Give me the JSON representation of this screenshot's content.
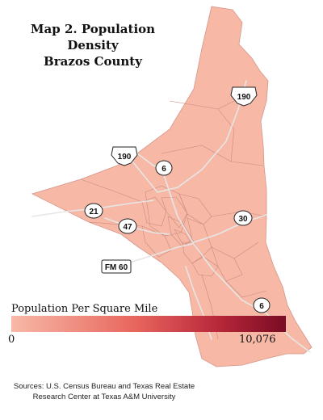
{
  "title": {
    "line1": "Map 2. Population Density",
    "line2": "Brazos County"
  },
  "legend": {
    "title": "Population Per Square Mile",
    "min": "0",
    "max": "10,076",
    "colors": [
      "#f7b9a6",
      "#e8665e",
      "#b8283a",
      "#7a0c24"
    ]
  },
  "base_fill_color": "#f7b9a6",
  "highways": [
    {
      "label": "190",
      "type": "us-highway-shield"
    },
    {
      "label": "190",
      "type": "us-highway-shield"
    },
    {
      "label": "6",
      "type": "state-highway-oval"
    },
    {
      "label": "21",
      "type": "state-highway-oval"
    },
    {
      "label": "47",
      "type": "state-highway-oval"
    },
    {
      "label": "30",
      "type": "state-highway-oval"
    },
    {
      "label": "FM 60",
      "type": "farm-road-rectangle"
    },
    {
      "label": "6",
      "type": "state-highway-oval"
    }
  ],
  "source": {
    "line1": "Sources: U.S. Census Bureau and Texas Real Estate",
    "line2": "Research Center at Texas A&M University"
  }
}
